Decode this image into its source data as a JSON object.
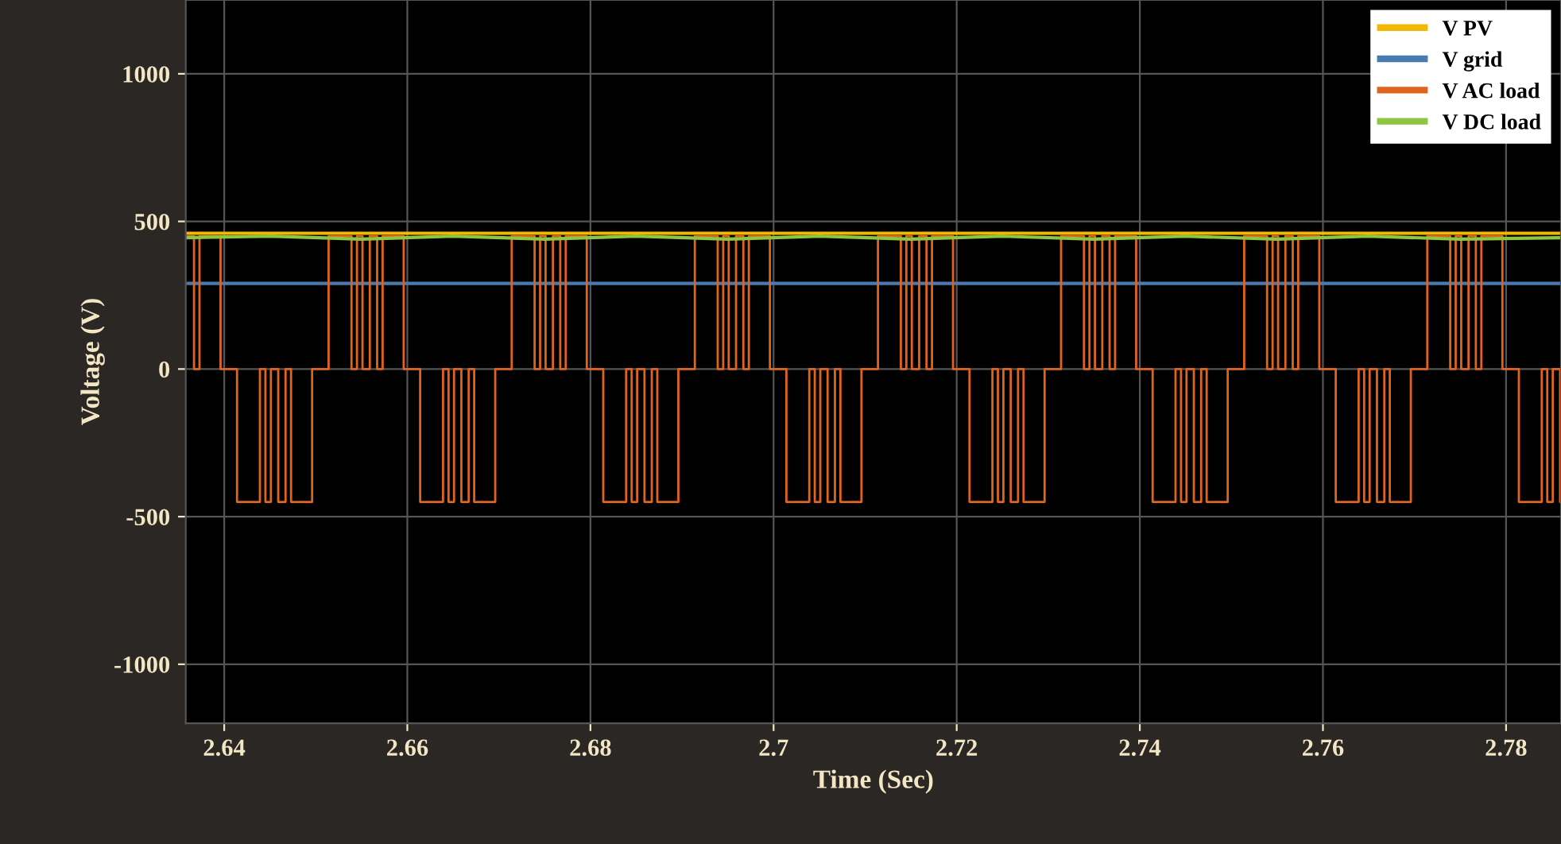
{
  "chart_data": {
    "type": "line",
    "xlabel": "Time (Sec)",
    "ylabel": "Voltage (V)",
    "xlim": [
      2.6358,
      2.786
    ],
    "xticks": [
      2.64,
      2.66,
      2.68,
      2.7,
      2.72,
      2.74,
      2.76,
      2.78
    ],
    "ylim": [
      -1200,
      1250
    ],
    "yticks": [
      -1000,
      -500,
      0,
      500,
      1000
    ],
    "grid": true,
    "legend": "top right",
    "series": [
      {
        "name": "V PV",
        "color": "#f5b800",
        "x": [
          2.6358,
          2.66,
          2.68,
          2.7,
          2.72,
          2.74,
          2.76,
          2.786
        ],
        "values": [
          460,
          460,
          460,
          460,
          460,
          460,
          460,
          460
        ]
      },
      {
        "name": "V grid",
        "color": "#4a7bb0",
        "x": [
          2.6358,
          2.66,
          2.68,
          2.7,
          2.72,
          2.74,
          2.76,
          2.786
        ],
        "values": [
          290,
          290,
          290,
          290,
          290,
          290,
          290,
          290
        ]
      },
      {
        "name": "V AC load",
        "color": "#e0641e",
        "type": "step",
        "x": [
          2.6358,
          2.6367,
          2.6373,
          2.6396,
          2.6414,
          2.6439,
          2.6445,
          2.6451,
          2.6459,
          2.6467,
          2.6473,
          2.6496,
          2.6514,
          2.6539,
          2.6545,
          2.6551,
          2.6559,
          2.6567,
          2.6573,
          2.6596,
          2.6614,
          2.6639,
          2.6645,
          2.6651,
          2.6659,
          2.6667,
          2.6673,
          2.6696,
          2.6714,
          2.6739,
          2.6745,
          2.6751,
          2.6759,
          2.6767,
          2.6773,
          2.6796,
          2.6814,
          2.6839,
          2.6845,
          2.6851,
          2.6859,
          2.6867,
          2.6873,
          2.6896,
          2.6914,
          2.6939,
          2.6945,
          2.6951,
          2.6959,
          2.6967,
          2.6973,
          2.6996,
          2.7014,
          2.7039,
          2.7045,
          2.7051,
          2.7059,
          2.7067,
          2.7073,
          2.7096,
          2.7114,
          2.7139,
          2.7145,
          2.7151,
          2.7159,
          2.7167,
          2.7173,
          2.7196,
          2.7214,
          2.7239,
          2.7245,
          2.7251,
          2.7259,
          2.7267,
          2.7273,
          2.7296,
          2.7314,
          2.7339,
          2.7345,
          2.7351,
          2.7359,
          2.7367,
          2.7373,
          2.7396,
          2.7414,
          2.7439,
          2.7445,
          2.7451,
          2.7459,
          2.7467,
          2.7473,
          2.7496,
          2.7514,
          2.7539,
          2.7545,
          2.7551,
          2.7559,
          2.7567,
          2.7573,
          2.7596,
          2.7614,
          2.7639,
          2.7645,
          2.7651,
          2.7659,
          2.7667,
          2.7673,
          2.7696,
          2.7714,
          2.7739,
          2.7745,
          2.7751,
          2.7759,
          2.7767,
          2.7773,
          2.7796,
          2.7814,
          2.7839,
          2.7845,
          2.7851,
          2.7859,
          2.786
        ],
        "values": [
          450,
          0,
          450,
          0,
          -450,
          0,
          -450,
          0,
          -450,
          0,
          -450,
          0,
          450,
          0,
          450,
          0,
          450,
          0,
          450,
          0,
          -450,
          0,
          -450,
          0,
          -450,
          0,
          -450,
          0,
          450,
          0,
          450,
          0,
          450,
          0,
          450,
          0,
          -450,
          0,
          -450,
          0,
          -450,
          0,
          -450,
          0,
          450,
          0,
          450,
          0,
          450,
          0,
          450,
          0,
          -450,
          0,
          -450,
          0,
          -450,
          0,
          -450,
          0,
          450,
          0,
          450,
          0,
          450,
          0,
          450,
          0,
          -450,
          0,
          -450,
          0,
          -450,
          0,
          -450,
          0,
          450,
          0,
          450,
          0,
          450,
          0,
          450,
          0,
          -450,
          0,
          -450,
          0,
          -450,
          0,
          -450,
          0,
          450,
          0,
          450,
          0,
          450,
          0,
          450,
          0,
          -450,
          0,
          -450,
          0,
          -450,
          0,
          -450,
          0,
          450,
          0,
          450,
          0,
          450,
          0,
          450,
          0,
          -450,
          0,
          -450,
          0,
          -450,
          -450
        ]
      },
      {
        "name": "V DC load",
        "color": "#8ec63f",
        "x": [
          2.6358,
          2.645,
          2.655,
          2.665,
          2.675,
          2.685,
          2.695,
          2.705,
          2.715,
          2.725,
          2.735,
          2.745,
          2.755,
          2.765,
          2.775,
          2.786
        ],
        "values": [
          445,
          450,
          440,
          450,
          440,
          450,
          440,
          450,
          440,
          450,
          440,
          450,
          440,
          450,
          440,
          445
        ]
      }
    ]
  }
}
